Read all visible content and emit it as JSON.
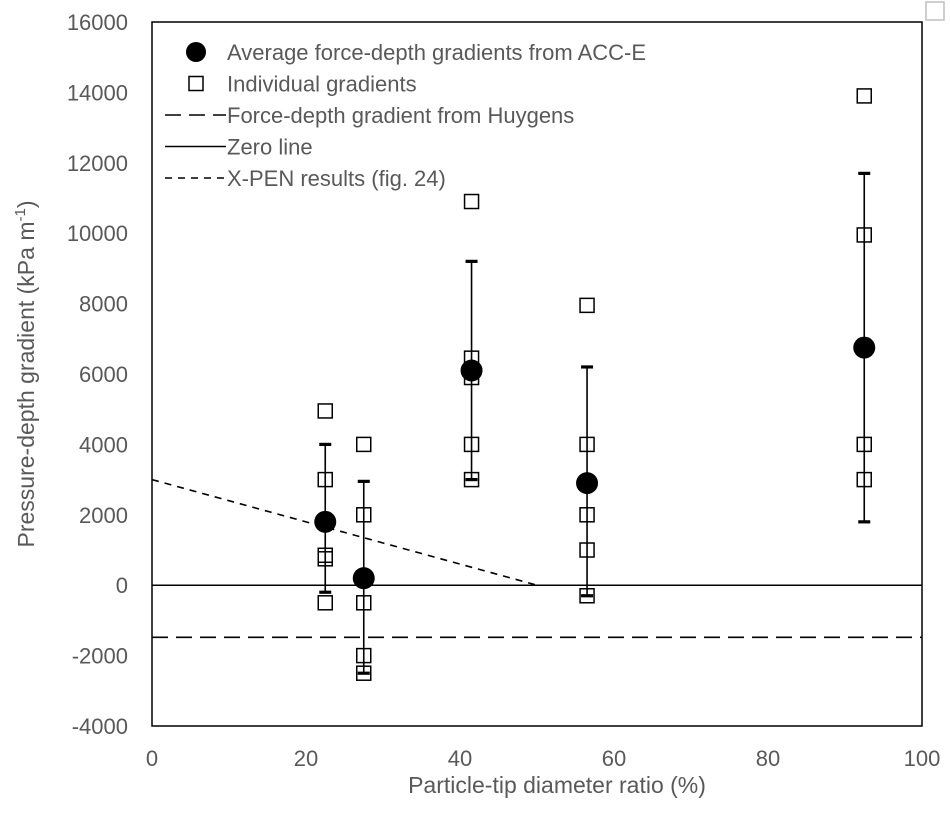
{
  "chart_data": {
    "type": "scatter",
    "xlabel": "Particle-tip diameter ratio (%)",
    "ylabel": "Pressure-depth gradient (kPa m",
    "ylabel_sup": "-1",
    "ylabel_suffix": ")",
    "xlim": [
      0,
      100
    ],
    "ylim": [
      -4000,
      16000
    ],
    "x_ticks": [
      "0",
      "20",
      "40",
      "60",
      "80",
      "100"
    ],
    "y_ticks": [
      "-4000",
      "-2000",
      "0",
      "2000",
      "4000",
      "6000",
      "8000",
      "10000",
      "12000",
      "14000",
      "16000"
    ],
    "grid": false,
    "legend_position": "top-left",
    "series": [
      {
        "name": "Average force-depth gradients from ACC-E",
        "marker": "filled-circle",
        "color": "#000000",
        "points": [
          {
            "x": 22.5,
            "y": 1800,
            "err_low": 2000,
            "err_high": 2200
          },
          {
            "x": 27.5,
            "y": 200,
            "err_low": 2700,
            "err_high": 2750
          },
          {
            "x": 41.5,
            "y": 6100,
            "err_low": 3100,
            "err_high": 3100
          },
          {
            "x": 56.5,
            "y": 2900,
            "err_low": 3200,
            "err_high": 3300
          },
          {
            "x": 92.5,
            "y": 6750,
            "err_low": 4950,
            "err_high": 4950
          }
        ]
      },
      {
        "name": "Individual gradients",
        "marker": "open-square",
        "color": "#000000",
        "points": [
          {
            "x": 22.5,
            "y": 4950
          },
          {
            "x": 22.5,
            "y": 3000
          },
          {
            "x": 22.5,
            "y": 850
          },
          {
            "x": 22.5,
            "y": 750
          },
          {
            "x": 22.5,
            "y": -500
          },
          {
            "x": 27.5,
            "y": 4000
          },
          {
            "x": 27.5,
            "y": 2000
          },
          {
            "x": 27.5,
            "y": -500
          },
          {
            "x": 27.5,
            "y": -2000
          },
          {
            "x": 27.5,
            "y": -2500
          },
          {
            "x": 41.5,
            "y": 10900
          },
          {
            "x": 41.5,
            "y": 6450
          },
          {
            "x": 41.5,
            "y": 5900
          },
          {
            "x": 41.5,
            "y": 4000
          },
          {
            "x": 41.5,
            "y": 3000
          },
          {
            "x": 56.5,
            "y": 7950
          },
          {
            "x": 56.5,
            "y": 4000
          },
          {
            "x": 56.5,
            "y": 2000
          },
          {
            "x": 56.5,
            "y": 1000
          },
          {
            "x": 56.5,
            "y": -300
          },
          {
            "x": 92.5,
            "y": 13900
          },
          {
            "x": 92.5,
            "y": 9950
          },
          {
            "x": 92.5,
            "y": 4000
          },
          {
            "x": 92.5,
            "y": 3000
          }
        ]
      },
      {
        "name": "Force-depth gradient from Huygens",
        "style": "long-dash",
        "color": "#000000",
        "points": [
          {
            "x": 0,
            "y": -1480
          },
          {
            "x": 100,
            "y": -1480
          }
        ]
      },
      {
        "name": "Zero line",
        "style": "solid",
        "color": "#000000",
        "points": [
          {
            "x": 0,
            "y": 0
          },
          {
            "x": 100,
            "y": 0
          }
        ]
      },
      {
        "name": "X-PEN results (fig. 24)",
        "style": "short-dash",
        "color": "#000000",
        "points": [
          {
            "x": 0,
            "y": 3000
          },
          {
            "x": 50,
            "y": 0
          }
        ]
      }
    ]
  }
}
